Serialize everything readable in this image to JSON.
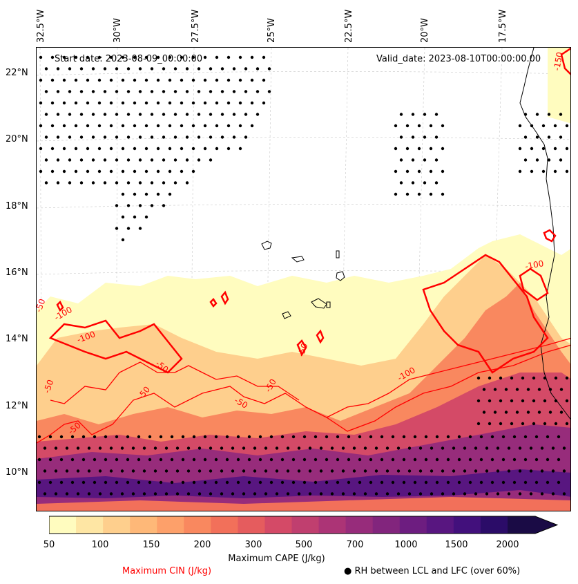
{
  "map": {
    "start_date": "Start date: 2023-08-09_00:00:00",
    "valid_date": "Valid_date: 2023-08-10T00:00:00.00",
    "lon_labels": [
      "32.5°W",
      "30°W",
      "27.5°W",
      "25°W",
      "22.5°W",
      "20°W",
      "17.5°W"
    ],
    "lat_labels": [
      "22°N",
      "20°N",
      "18°N",
      "16°N",
      "14°N",
      "12°N",
      "10°N"
    ]
  },
  "colorbar": {
    "label": "Maximum CAPE (J/kg)",
    "tick_labels": [
      "50",
      "100",
      "150",
      "200",
      "300",
      "500",
      "700",
      "1000",
      "1500",
      "2000"
    ],
    "colors": [
      "#fffcbf",
      "#fee6a4",
      "#fecf8d",
      "#feb878",
      "#fda06a",
      "#f9885f",
      "#f2705a",
      "#e55c5e",
      "#d44a67",
      "#c03f6f",
      "#ac3476",
      "#972c7b",
      "#82257d",
      "#6d1d80",
      "#581680",
      "#42107c",
      "#2b0c68",
      "#1a0b45"
    ]
  },
  "legend": {
    "cin": "Maximum CIN (J/kg)",
    "rh": "● RH between LCL and LFC (over 60%)",
    "cin_color": "#ff0000"
  },
  "contour_labels": [
    "-50",
    "-50",
    "-50",
    "-50",
    "-50",
    "-50",
    "-50",
    "-50",
    "-100",
    "-100",
    "-100",
    "-100",
    "-150"
  ]
}
